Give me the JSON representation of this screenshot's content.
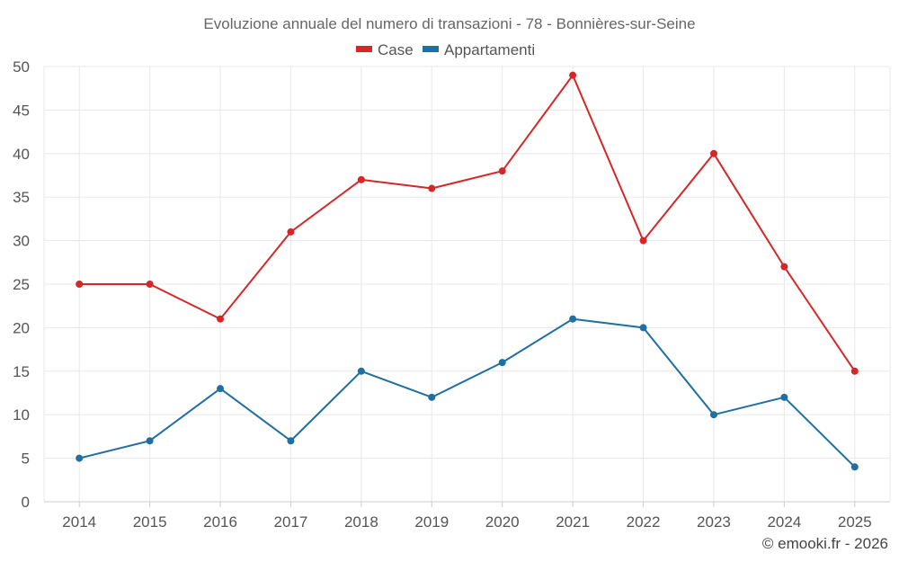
{
  "chart_data": {
    "type": "line",
    "title": "Evoluzione annuale del numero di transazioni - 78 - Bonnières-sur-Seine",
    "categories": [
      "2014",
      "2015",
      "2016",
      "2017",
      "2018",
      "2019",
      "2020",
      "2021",
      "2022",
      "2023",
      "2024",
      "2025"
    ],
    "series": [
      {
        "name": "Case",
        "color": "#d62728",
        "values": [
          25,
          25,
          21,
          31,
          37,
          36,
          38,
          49,
          30,
          40,
          27,
          15
        ]
      },
      {
        "name": "Appartamenti",
        "color": "#1f6fa3",
        "values": [
          5,
          7,
          13,
          7,
          15,
          12,
          16,
          21,
          20,
          10,
          12,
          4
        ]
      }
    ],
    "ylim": [
      0,
      50
    ],
    "yticks": [
      0,
      5,
      10,
      15,
      20,
      25,
      30,
      35,
      40,
      45,
      50
    ],
    "xlabel": "",
    "ylabel": "",
    "grid": true,
    "legend": "top-center"
  },
  "credit": "© emooki.fr - 2026"
}
